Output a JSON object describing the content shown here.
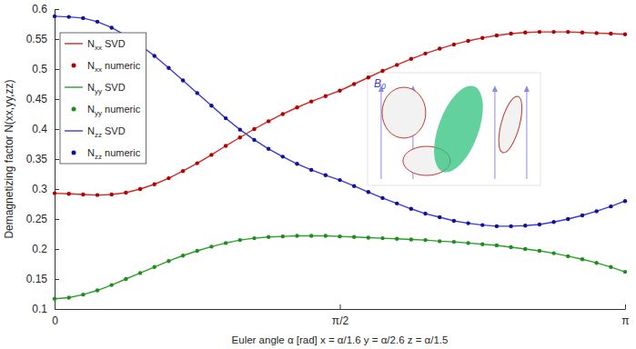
{
  "chart_data": {
    "type": "line",
    "xlabel": "Euler angle α [rad]   x = α/1.6  y = α/2.6  z = α/1.5",
    "ylabel": "Demagnetizing factor  N(xx,yy,zz)",
    "annotations": [
      "B₀"
    ],
    "x": [
      0,
      0.0785,
      0.1571,
      0.2356,
      0.3142,
      0.3927,
      0.4712,
      0.5498,
      0.6283,
      0.7069,
      0.7854,
      0.8639,
      0.9425,
      1.021,
      1.0996,
      1.1781,
      1.2566,
      1.3352,
      1.4137,
      1.4923,
      1.5708,
      1.6493,
      1.7279,
      1.8064,
      1.885,
      1.9635,
      2.042,
      2.1206,
      2.1991,
      2.2777,
      2.3562,
      2.4347,
      2.5133,
      2.5918,
      2.6704,
      2.7489,
      2.8274,
      2.906,
      2.9845,
      3.0631,
      3.1416
    ],
    "series": [
      {
        "name": "Nxx SVD",
        "color": "#d62728",
        "type": "line",
        "line_style": "solid",
        "values": [
          0.293,
          0.292,
          0.291,
          0.29,
          0.291,
          0.294,
          0.3,
          0.308,
          0.318,
          0.33,
          0.343,
          0.357,
          0.372,
          0.386,
          0.4,
          0.413,
          0.425,
          0.436,
          0.446,
          0.455,
          0.464,
          0.475,
          0.486,
          0.497,
          0.507,
          0.517,
          0.526,
          0.534,
          0.541,
          0.547,
          0.552,
          0.556,
          0.559,
          0.561,
          0.562,
          0.562,
          0.562,
          0.561,
          0.56,
          0.559,
          0.558
        ]
      },
      {
        "name": "Nxx numeric",
        "color": "#b00000",
        "type": "scatter",
        "marker": "circle",
        "values": [
          0.293,
          0.292,
          0.291,
          0.29,
          0.291,
          0.294,
          0.3,
          0.308,
          0.318,
          0.33,
          0.343,
          0.357,
          0.372,
          0.386,
          0.4,
          0.413,
          0.425,
          0.436,
          0.446,
          0.455,
          0.464,
          0.475,
          0.486,
          0.497,
          0.507,
          0.517,
          0.526,
          0.534,
          0.541,
          0.547,
          0.552,
          0.556,
          0.559,
          0.561,
          0.562,
          0.562,
          0.562,
          0.561,
          0.56,
          0.559,
          0.558
        ]
      },
      {
        "name": "Nyy SVD",
        "color": "#2ca02c",
        "type": "line",
        "line_style": "solid",
        "values": [
          0.117,
          0.119,
          0.124,
          0.131,
          0.14,
          0.15,
          0.16,
          0.17,
          0.18,
          0.189,
          0.197,
          0.204,
          0.21,
          0.215,
          0.218,
          0.22,
          0.221,
          0.222,
          0.222,
          0.222,
          0.221,
          0.22,
          0.219,
          0.218,
          0.217,
          0.216,
          0.215,
          0.213,
          0.212,
          0.21,
          0.208,
          0.206,
          0.203,
          0.2,
          0.197,
          0.193,
          0.188,
          0.183,
          0.177,
          0.17,
          0.162
        ]
      },
      {
        "name": "Nyy numeric",
        "color": "#1e8c1e",
        "type": "scatter",
        "marker": "circle",
        "values": [
          0.117,
          0.119,
          0.124,
          0.131,
          0.14,
          0.15,
          0.16,
          0.17,
          0.18,
          0.189,
          0.197,
          0.204,
          0.21,
          0.215,
          0.218,
          0.22,
          0.221,
          0.222,
          0.222,
          0.222,
          0.221,
          0.22,
          0.219,
          0.218,
          0.217,
          0.216,
          0.215,
          0.213,
          0.212,
          0.21,
          0.208,
          0.206,
          0.203,
          0.2,
          0.197,
          0.193,
          0.188,
          0.183,
          0.177,
          0.17,
          0.162
        ]
      },
      {
        "name": "Nzz SVD",
        "color": "#3b3bd6",
        "type": "line",
        "line_style": "solid",
        "values": [
          0.588,
          0.587,
          0.585,
          0.579,
          0.569,
          0.556,
          0.54,
          0.522,
          0.502,
          0.481,
          0.46,
          0.439,
          0.418,
          0.399,
          0.382,
          0.367,
          0.354,
          0.342,
          0.332,
          0.323,
          0.315,
          0.305,
          0.295,
          0.285,
          0.276,
          0.267,
          0.259,
          0.253,
          0.247,
          0.243,
          0.24,
          0.238,
          0.238,
          0.239,
          0.241,
          0.245,
          0.25,
          0.256,
          0.263,
          0.271,
          0.28
        ]
      },
      {
        "name": "Nzz numeric",
        "color": "#10109a",
        "type": "scatter",
        "marker": "circle",
        "values": [
          0.588,
          0.587,
          0.585,
          0.579,
          0.569,
          0.556,
          0.54,
          0.522,
          0.502,
          0.481,
          0.46,
          0.439,
          0.418,
          0.399,
          0.382,
          0.367,
          0.354,
          0.342,
          0.332,
          0.323,
          0.315,
          0.305,
          0.295,
          0.285,
          0.276,
          0.267,
          0.259,
          0.253,
          0.247,
          0.243,
          0.24,
          0.238,
          0.238,
          0.239,
          0.241,
          0.245,
          0.25,
          0.256,
          0.263,
          0.271,
          0.28
        ]
      }
    ],
    "xlim": [
      0,
      3.1416
    ],
    "xticks": [
      0,
      {
        "value": 1.5708,
        "label": "π/2"
      },
      {
        "value": 3.1416,
        "label": "π"
      }
    ],
    "ylim": [
      0.1,
      0.6
    ],
    "yticks": [
      0.1,
      0.15,
      0.2,
      0.25,
      0.3,
      0.35,
      0.4,
      0.45,
      0.5,
      0.55,
      0.6
    ],
    "grid": false,
    "legend": "upper left"
  }
}
